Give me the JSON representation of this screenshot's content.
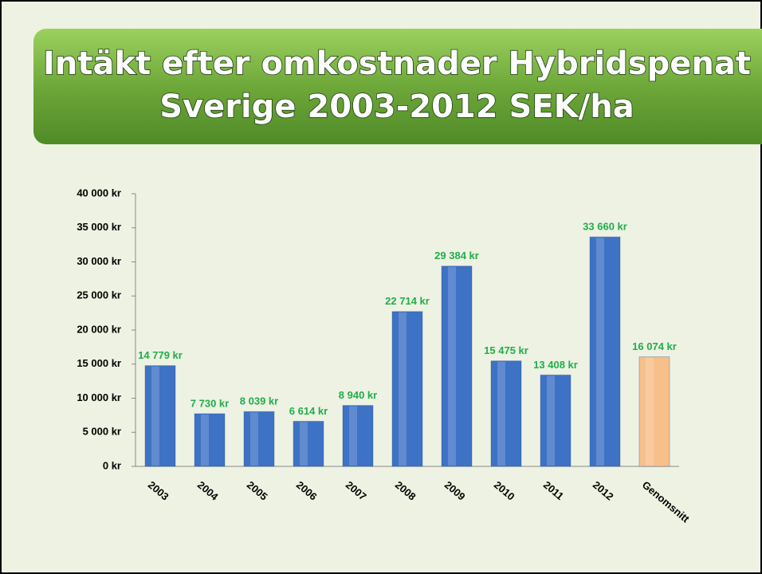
{
  "chart_data": {
    "type": "bar",
    "title_lines": [
      "Intäkt efter omkostnader Hybridspenat",
      "Sverige 2003-2012 SEK/ha"
    ],
    "categories": [
      "2003",
      "2004",
      "2005",
      "2006",
      "2007",
      "2008",
      "2009",
      "2010",
      "2011",
      "2012",
      "Genomsnitt"
    ],
    "values": [
      14779,
      7730,
      8039,
      6614,
      8940,
      22714,
      29384,
      15475,
      13408,
      33660,
      16074
    ],
    "value_labels": [
      "14 779 kr",
      "7 730 kr",
      "8 039 kr",
      "6 614 kr",
      "8 940 kr",
      "22 714 kr",
      "29 384 kr",
      "15 475 kr",
      "13 408 kr",
      "33 660 kr",
      "16 074 kr"
    ],
    "colors": [
      "#3d72c4",
      "#3d72c4",
      "#3d72c4",
      "#3d72c4",
      "#3d72c4",
      "#3d72c4",
      "#3d72c4",
      "#3d72c4",
      "#3d72c4",
      "#3d72c4",
      "#f7c08a"
    ],
    "label_color": "#1fae4a",
    "ylim": [
      0,
      40000
    ],
    "yticks": [
      {
        "value": 0,
        "label": "0 kr"
      },
      {
        "value": 5000,
        "label": "5 000 kr"
      },
      {
        "value": 10000,
        "label": "10 000 kr"
      },
      {
        "value": 15000,
        "label": "15 000 kr"
      },
      {
        "value": 20000,
        "label": "20 000 kr"
      },
      {
        "value": 25000,
        "label": "25 000 kr"
      },
      {
        "value": 30000,
        "label": "30 000 kr"
      },
      {
        "value": 35000,
        "label": "35 000 kr"
      },
      {
        "value": 40000,
        "label": "40 000 kr"
      }
    ]
  }
}
